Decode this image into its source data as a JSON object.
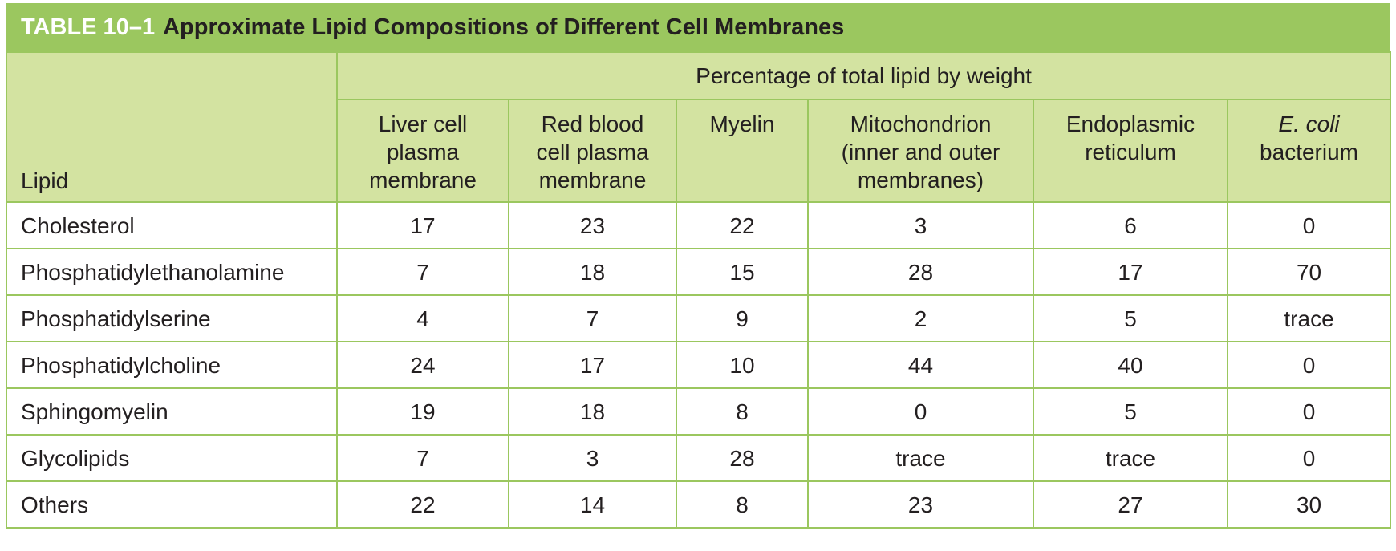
{
  "title": {
    "label": "TABLE 10–1",
    "text": "Approximate Lipid Compositions of Different Cell Membranes"
  },
  "header": {
    "lipid": "Lipid",
    "group": "Percentage of total lipid by weight",
    "columns": [
      [
        "Liver cell",
        "plasma",
        "membrane"
      ],
      [
        "Red blood",
        "cell plasma",
        "membrane"
      ],
      [
        "Myelin"
      ],
      [
        "Mitochondrion",
        "(inner and outer",
        "membranes)"
      ],
      [
        "Endoplasmic",
        "reticulum"
      ],
      [
        "E. coli",
        "bacterium"
      ]
    ]
  },
  "rows": [
    {
      "name": "Cholesterol",
      "values": [
        "17",
        "23",
        "22",
        "3",
        "6",
        "0"
      ]
    },
    {
      "name": "Phosphatidylethanolamine",
      "values": [
        "7",
        "18",
        "15",
        "28",
        "17",
        "70"
      ]
    },
    {
      "name": "Phosphatidylserine",
      "values": [
        "4",
        "7",
        "9",
        "2",
        "5",
        "trace"
      ]
    },
    {
      "name": "Phosphatidylcholine",
      "values": [
        "24",
        "17",
        "10",
        "44",
        "40",
        "0"
      ]
    },
    {
      "name": "Sphingomyelin",
      "values": [
        "19",
        "18",
        "8",
        "0",
        "5",
        "0"
      ]
    },
    {
      "name": "Glycolipids",
      "values": [
        "7",
        "3",
        "28",
        "trace",
        "trace",
        "0"
      ]
    },
    {
      "name": "Others",
      "values": [
        "22",
        "14",
        "8",
        "23",
        "27",
        "30"
      ]
    }
  ],
  "colors": {
    "title_bar": "#9bc75f",
    "header_fill": "#d3e3a1",
    "grid": "#9bc75f"
  }
}
